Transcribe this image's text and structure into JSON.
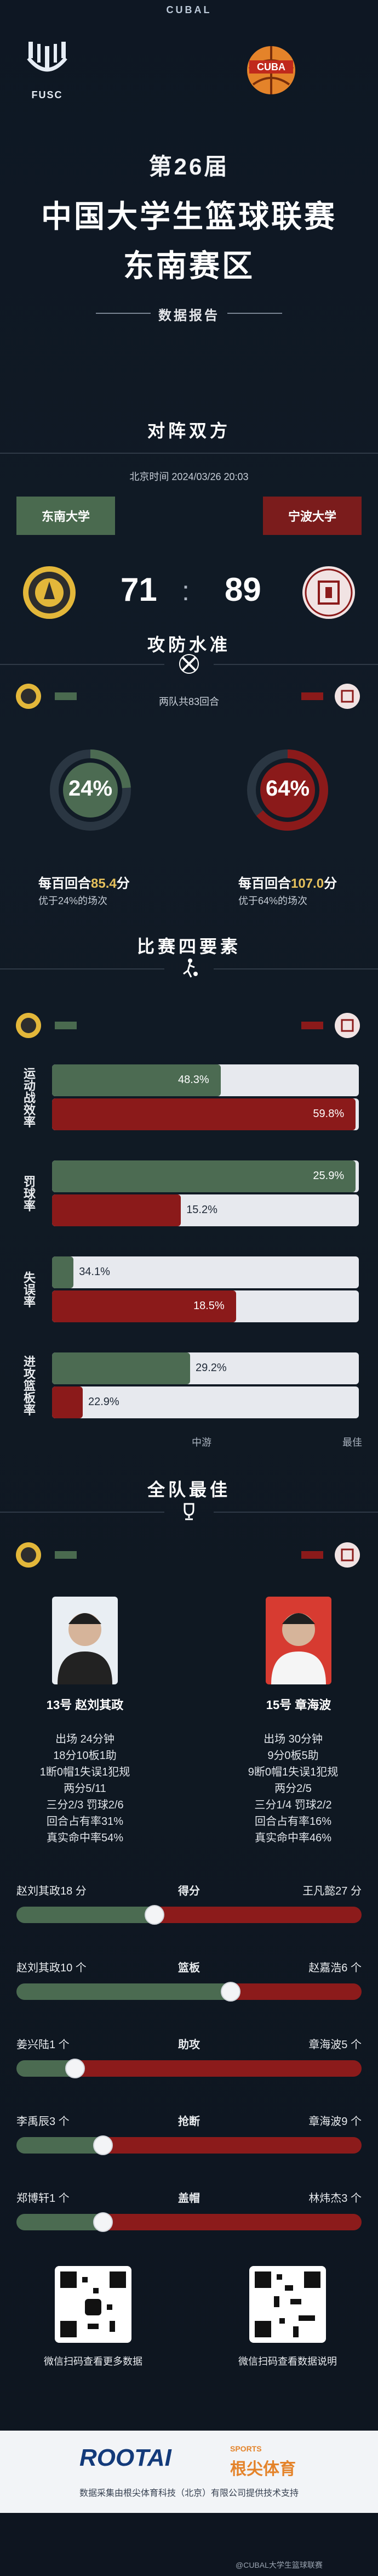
{
  "header": {
    "brand": "CUBAL",
    "school_logo_text": "FUSC",
    "title_1": "第26届",
    "title_2": "中国大学生篮球联赛",
    "title_3": "东南赛区",
    "subtitle": "数据报告"
  },
  "matchup": {
    "section_title": "对阵双方",
    "time": "北京时间 2024/03/26 20:03",
    "home": {
      "name": "东南大学",
      "score": "71"
    },
    "away": {
      "name": "宁波大学",
      "score": "89"
    },
    "colors": {
      "home": "#4a6a4f",
      "away": "#7b1c1c"
    }
  },
  "offense": {
    "section_title": "攻防水准",
    "rounds": "两队共83回合",
    "home": {
      "pct": "24%",
      "label_prefix": "每百回合",
      "value": "85.4",
      "unit": "分",
      "sub": "优于24%的场次",
      "pct_value": 24
    },
    "away": {
      "pct": "64%",
      "label_prefix": "每百回合",
      "value": "107.0",
      "unit": "分",
      "sub": "优于64%的场次",
      "pct_value": 64
    }
  },
  "factors": {
    "section_title": "比赛四要素",
    "axis_mid": "中游",
    "axis_max": "最佳",
    "items": [
      {
        "label": "运动战效率",
        "home": "48.3%",
        "away": "59.8%",
        "home_fill": 0.55,
        "away_fill": 0.99
      },
      {
        "label": "罚球率",
        "home": "25.9%",
        "away": "15.2%",
        "home_fill": 0.99,
        "away_fill": 0.42
      },
      {
        "label": "失误率",
        "home": "34.1%",
        "away": "18.5%",
        "home_fill": 0.07,
        "away_fill": 0.6
      },
      {
        "label": "进攻篮板率",
        "home": "29.2%",
        "away": "22.9%",
        "home_fill": 0.45,
        "away_fill": 0.1
      }
    ]
  },
  "best": {
    "section_title": "全队最佳",
    "home": {
      "name": "13号 赵刘其政",
      "stats": [
        "出场 24分钟",
        "18分10板1助",
        "1断0帽1失误1犯规",
        "两分5/11",
        "三分2/3 罚球2/6",
        "回合占有率31%",
        "真实命中率54%"
      ]
    },
    "away": {
      "name": "15号 章海波",
      "stats": [
        "出场 30分钟",
        "9分0板5助",
        "9断0帽1失误1犯规",
        "两分2/5",
        "三分1/4 罚球2/2",
        "回合占有率16%",
        "真实命中率46%"
      ]
    },
    "comparisons": [
      {
        "metric": "得分",
        "home": "赵刘其政18 分",
        "away": "王凡懿27 分",
        "home_value": 18,
        "away_value": 27,
        "split": 0.4
      },
      {
        "metric": "篮板",
        "home": "赵刘其政10 个",
        "away": "赵嘉浩6 个",
        "home_value": 10,
        "away_value": 6,
        "split": 0.62
      },
      {
        "metric": "助攻",
        "home": "姜兴陆1 个",
        "away": "章海波5 个",
        "home_value": 1,
        "away_value": 5,
        "split": 0.17
      },
      {
        "metric": "抢断",
        "home": "李禹辰3 个",
        "away": "章海波9 个",
        "home_value": 3,
        "away_value": 9,
        "split": 0.25
      },
      {
        "metric": "盖帽",
        "home": "郑博轩1 个",
        "away": "林炜杰3 个",
        "home_value": 1,
        "away_value": 3,
        "split": 0.25
      }
    ]
  },
  "footer": {
    "qr_left_caption": "微信扫码查看更多数据",
    "qr_right_caption": "微信扫码查看数据说明",
    "brand": "ROOTAI",
    "brand_cn": "根尖体育",
    "brand_tag": "SPORTS",
    "watermark": "@CUBAL大学生篮球联赛",
    "note": "数据采集由根尖体育科技（北京）有限公司提供技术支持"
  }
}
